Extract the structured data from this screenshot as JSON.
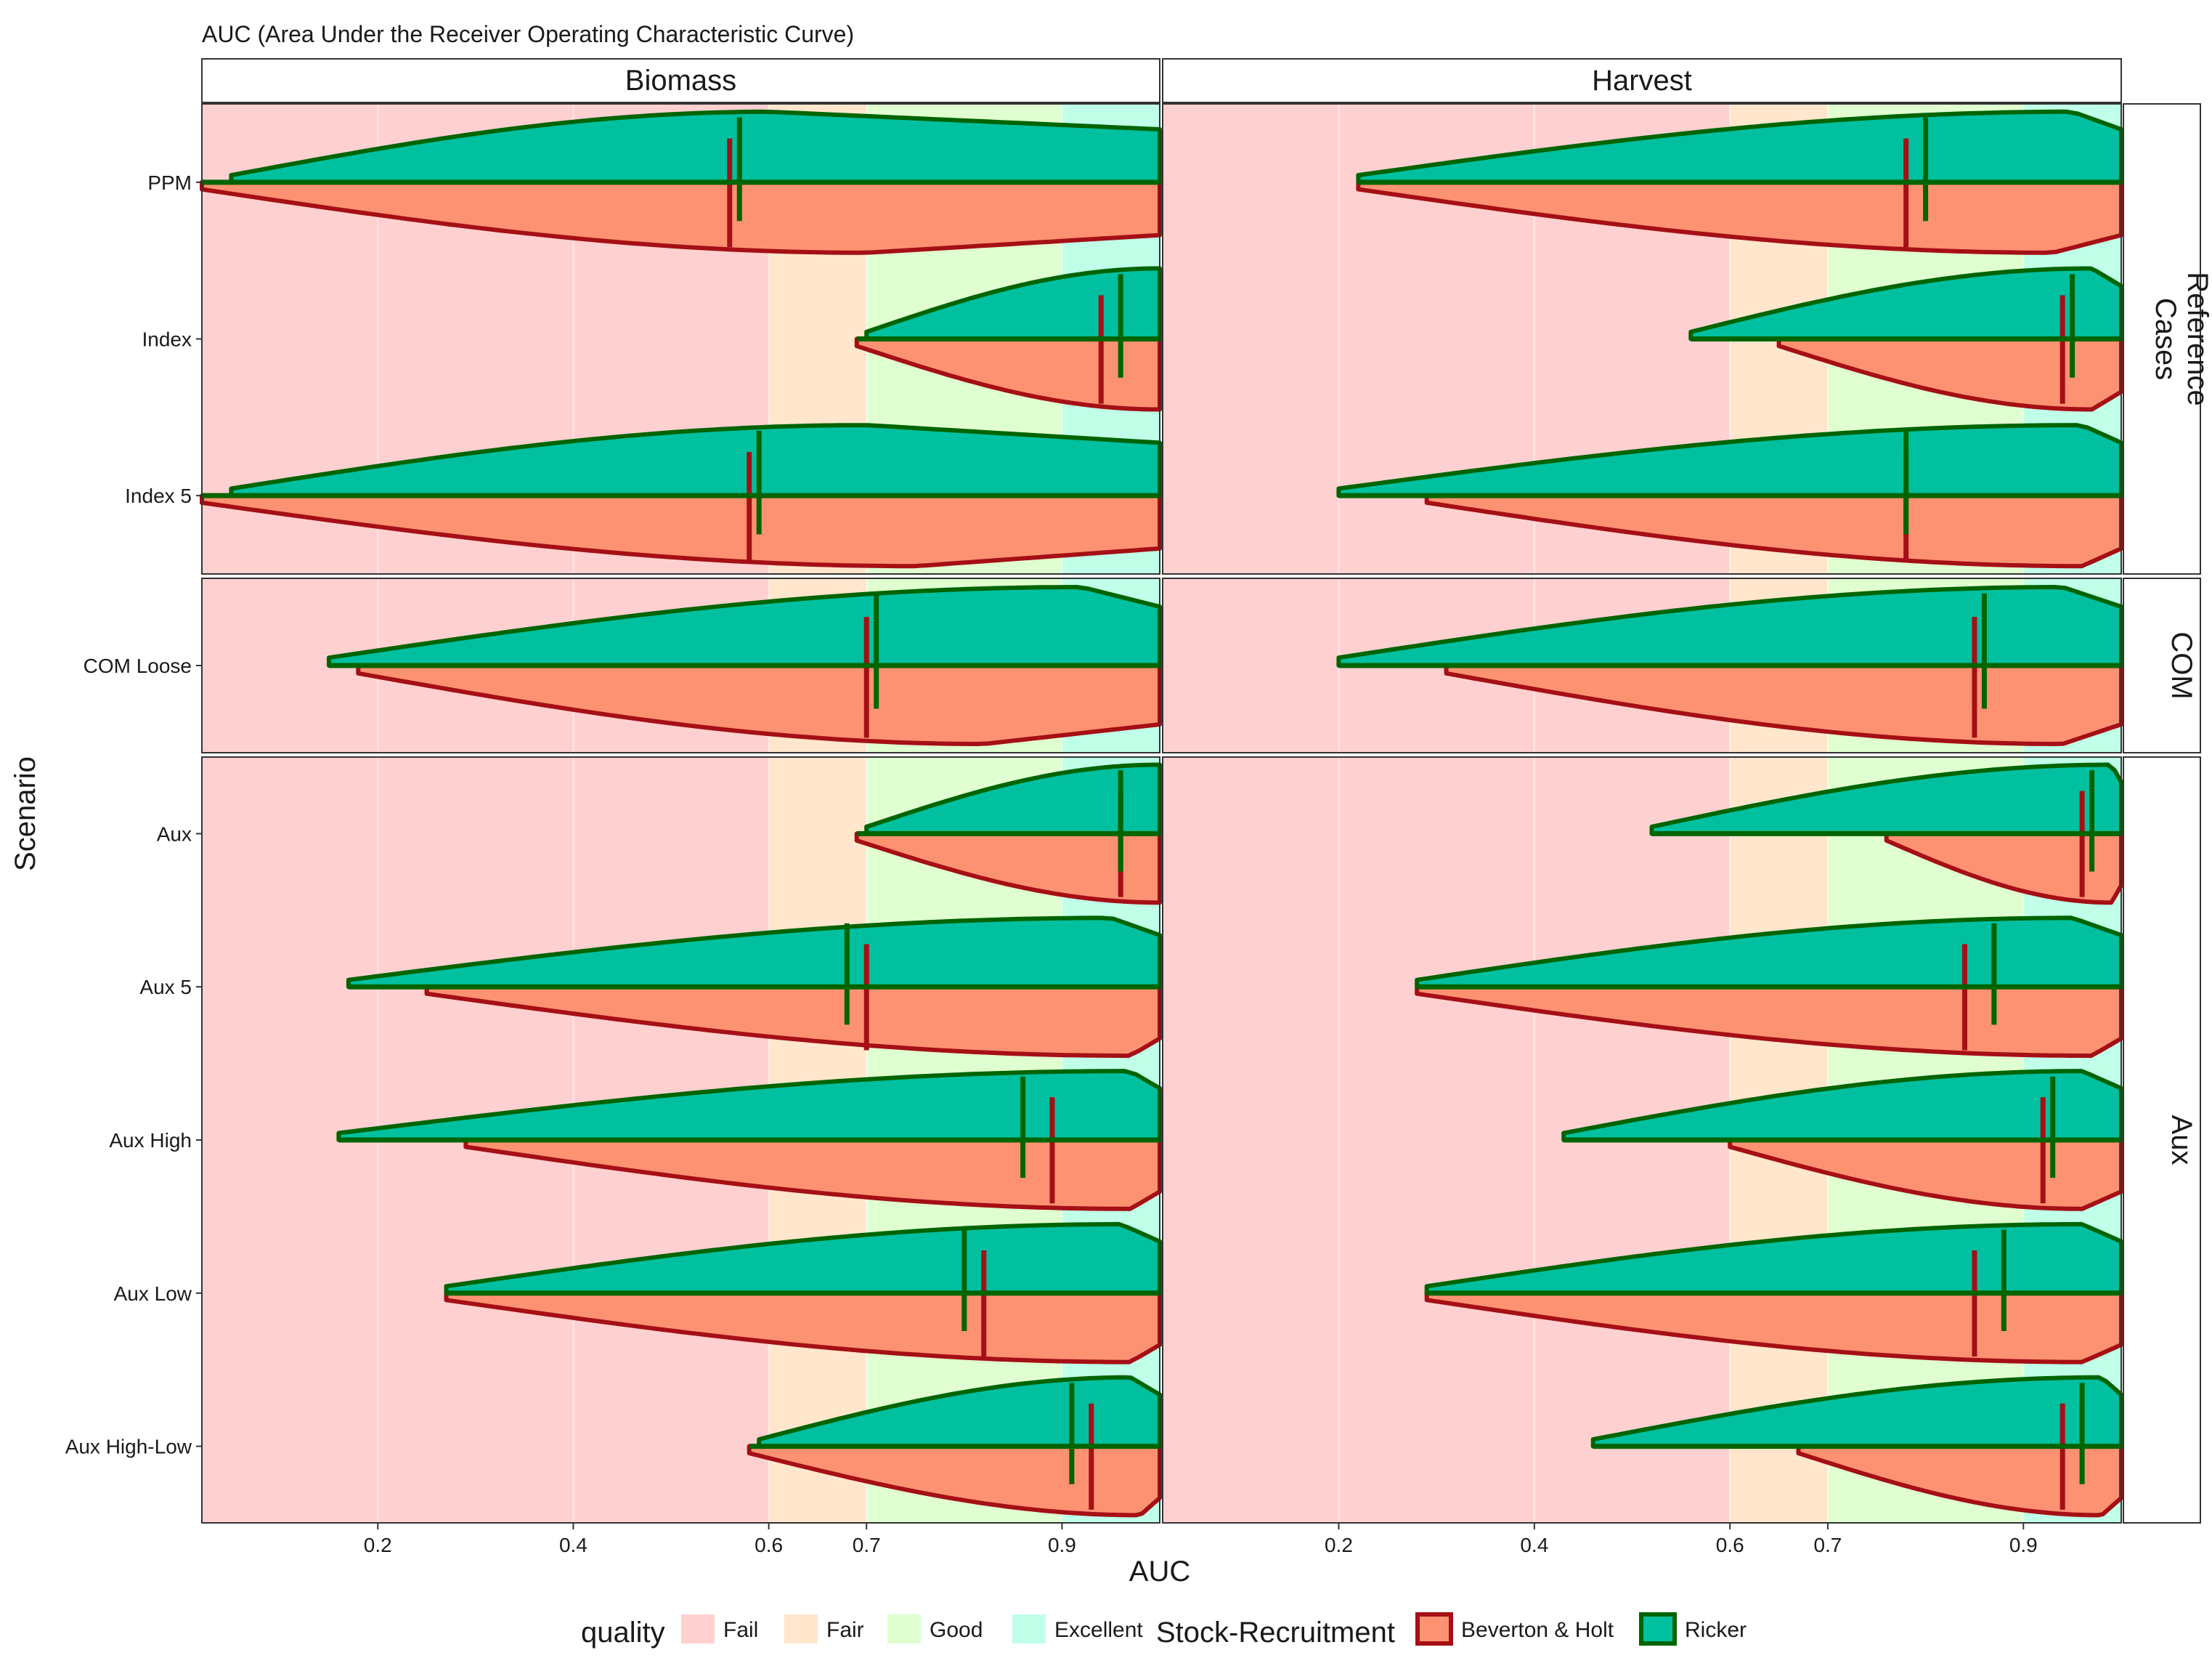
{
  "chart_data": {
    "type": "violin",
    "title": "AUC (Area Under the Receiver Operating Characteristic Curve)",
    "xlabel": "AUC",
    "ylabel": "Scenario",
    "xlim": [
      0.02,
      1.0
    ],
    "x_ticks": [
      0.2,
      0.4,
      0.6,
      0.7,
      0.9
    ],
    "x_tick_labels": [
      "0.2",
      "0.4",
      "0.6",
      "0.7",
      "0.9"
    ],
    "columns": [
      "Biomass",
      "Harvest"
    ],
    "row_groups": [
      {
        "label_lines": [
          "Reference",
          "Cases"
        ],
        "scenarios": [
          "PPM",
          "Index",
          "Index 5"
        ]
      },
      {
        "label_lines": [
          "COM"
        ],
        "scenarios": [
          "COM Loose"
        ]
      },
      {
        "label_lines": [
          "Aux"
        ],
        "scenarios": [
          "Aux",
          "Aux 5",
          "Aux High",
          "Aux Low",
          "Aux High-Low"
        ]
      }
    ],
    "quality_bands": [
      {
        "name": "Fail",
        "from": 0.0,
        "to": 0.6,
        "color": "#ffd0d0"
      },
      {
        "name": "Fair",
        "from": 0.6,
        "to": 0.7,
        "color": "#ffe6cc"
      },
      {
        "name": "Good",
        "from": 0.7,
        "to": 0.9,
        "color": "#e0ffd0"
      },
      {
        "name": "Excellent",
        "from": 0.9,
        "to": 1.0,
        "color": "#c0ffe8"
      }
    ],
    "legend": {
      "quality_title": "quality",
      "quality_items": [
        "Fail",
        "Fair",
        "Good",
        "Excellent"
      ],
      "sr_title": "Stock-Recruitment",
      "sr_items": [
        {
          "name": "Beverton & Holt",
          "fill": "#fc9272",
          "line": "#a50f15"
        },
        {
          "name": "Ricker",
          "fill": "#00c0a0",
          "line": "#006400"
        }
      ]
    },
    "violins": [
      {
        "scenario": "PPM",
        "panel": "Biomass",
        "ricker": {
          "min": 0.05,
          "median": 0.57,
          "peak": 0.6
        },
        "bh": {
          "min": 0.02,
          "median": 0.56,
          "peak": 0.7
        }
      },
      {
        "scenario": "PPM",
        "panel": "Harvest",
        "ricker": {
          "min": 0.22,
          "median": 0.8,
          "peak": 0.95
        },
        "bh": {
          "min": 0.22,
          "median": 0.78,
          "peak": 0.93
        }
      },
      {
        "scenario": "Index",
        "panel": "Biomass",
        "ricker": {
          "min": 0.7,
          "median": 0.96,
          "peak": 1.0
        },
        "bh": {
          "min": 0.69,
          "median": 0.94,
          "peak": 1.0
        }
      },
      {
        "scenario": "Index",
        "panel": "Harvest",
        "ricker": {
          "min": 0.56,
          "median": 0.95,
          "peak": 0.97
        },
        "bh": {
          "min": 0.65,
          "median": 0.94,
          "peak": 0.97
        }
      },
      {
        "scenario": "Index 5",
        "panel": "Biomass",
        "ricker": {
          "min": 0.05,
          "median": 0.59,
          "peak": 0.7
        },
        "bh": {
          "min": 0.02,
          "median": 0.58,
          "peak": 0.75
        }
      },
      {
        "scenario": "Index 5",
        "panel": "Harvest",
        "ricker": {
          "min": 0.2,
          "median": 0.78,
          "peak": 0.96
        },
        "bh": {
          "min": 0.29,
          "median": 0.78,
          "peak": 0.96
        }
      },
      {
        "scenario": "COM Loose",
        "panel": "Biomass",
        "ricker": {
          "min": 0.15,
          "median": 0.71,
          "peak": 0.92
        },
        "bh": {
          "min": 0.18,
          "median": 0.7,
          "peak": 0.82
        }
      },
      {
        "scenario": "COM Loose",
        "panel": "Harvest",
        "ricker": {
          "min": 0.2,
          "median": 0.86,
          "peak": 0.94
        },
        "bh": {
          "min": 0.31,
          "median": 0.85,
          "peak": 0.94
        }
      },
      {
        "scenario": "Aux",
        "panel": "Biomass",
        "ricker": {
          "min": 0.7,
          "median": 0.96,
          "peak": 1.0
        },
        "bh": {
          "min": 0.69,
          "median": 0.96,
          "peak": 1.0
        }
      },
      {
        "scenario": "Aux",
        "panel": "Harvest",
        "ricker": {
          "min": 0.52,
          "median": 0.97,
          "peak": 0.99
        },
        "bh": {
          "min": 0.76,
          "median": 0.96,
          "peak": 0.99
        }
      },
      {
        "scenario": "Aux 5",
        "panel": "Biomass",
        "ricker": {
          "min": 0.17,
          "median": 0.68,
          "peak": 0.95
        },
        "bh": {
          "min": 0.25,
          "median": 0.7,
          "peak": 0.97
        }
      },
      {
        "scenario": "Aux 5",
        "panel": "Harvest",
        "ricker": {
          "min": 0.28,
          "median": 0.87,
          "peak": 0.95
        },
        "bh": {
          "min": 0.28,
          "median": 0.84,
          "peak": 0.97
        }
      },
      {
        "scenario": "Aux High",
        "panel": "Biomass",
        "ricker": {
          "min": 0.16,
          "median": 0.86,
          "peak": 0.97
        },
        "bh": {
          "min": 0.29,
          "median": 0.89,
          "peak": 0.97
        }
      },
      {
        "scenario": "Aux High",
        "panel": "Harvest",
        "ricker": {
          "min": 0.43,
          "median": 0.93,
          "peak": 0.96
        },
        "bh": {
          "min": 0.6,
          "median": 0.92,
          "peak": 0.96
        }
      },
      {
        "scenario": "Aux Low",
        "panel": "Biomass",
        "ricker": {
          "min": 0.27,
          "median": 0.8,
          "peak": 0.96
        },
        "bh": {
          "min": 0.27,
          "median": 0.82,
          "peak": 0.97
        }
      },
      {
        "scenario": "Aux Low",
        "panel": "Harvest",
        "ricker": {
          "min": 0.29,
          "median": 0.88,
          "peak": 0.96
        },
        "bh": {
          "min": 0.29,
          "median": 0.85,
          "peak": 0.96
        }
      },
      {
        "scenario": "Aux High-Low",
        "panel": "Biomass",
        "ricker": {
          "min": 0.59,
          "median": 0.91,
          "peak": 0.97
        },
        "bh": {
          "min": 0.58,
          "median": 0.93,
          "peak": 0.98
        }
      },
      {
        "scenario": "Aux High-Low",
        "panel": "Harvest",
        "ricker": {
          "min": 0.46,
          "median": 0.96,
          "peak": 0.98
        },
        "bh": {
          "min": 0.67,
          "median": 0.94,
          "peak": 0.98
        }
      }
    ]
  }
}
